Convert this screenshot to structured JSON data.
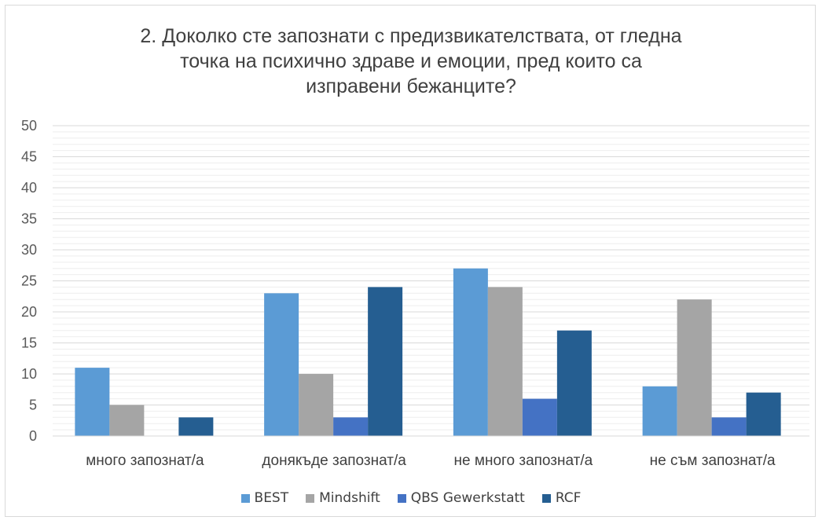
{
  "chart_data": {
    "type": "bar",
    "title_lines": [
      "2. Доколко сте запознати с предизвикателствата, от гледна",
      "точка на психично здраве и емоции, пред които са",
      "изправени бежанците?"
    ],
    "categories": [
      "много запознат/а",
      "донякъде запознат/а",
      "не много запознат/а",
      "не съм запознат/а"
    ],
    "series": [
      {
        "name": "BEST",
        "color": "#5B9BD5",
        "values": [
          11,
          23,
          27,
          8
        ]
      },
      {
        "name": "Mindshift",
        "color": "#A5A5A5",
        "values": [
          5,
          10,
          24,
          22
        ]
      },
      {
        "name": "QBS Gewerkstatt",
        "color": "#4472C4",
        "values": [
          0,
          3,
          6,
          3
        ]
      },
      {
        "name": "RCF",
        "color": "#255E91",
        "values": [
          3,
          24,
          17,
          7
        ]
      }
    ],
    "ylim": [
      0,
      50
    ],
    "yticks": [
      "0",
      "5",
      "10",
      "15",
      "20",
      "25",
      "30",
      "35",
      "40",
      "45",
      "50"
    ],
    "grid": true,
    "legend": "bottom"
  }
}
